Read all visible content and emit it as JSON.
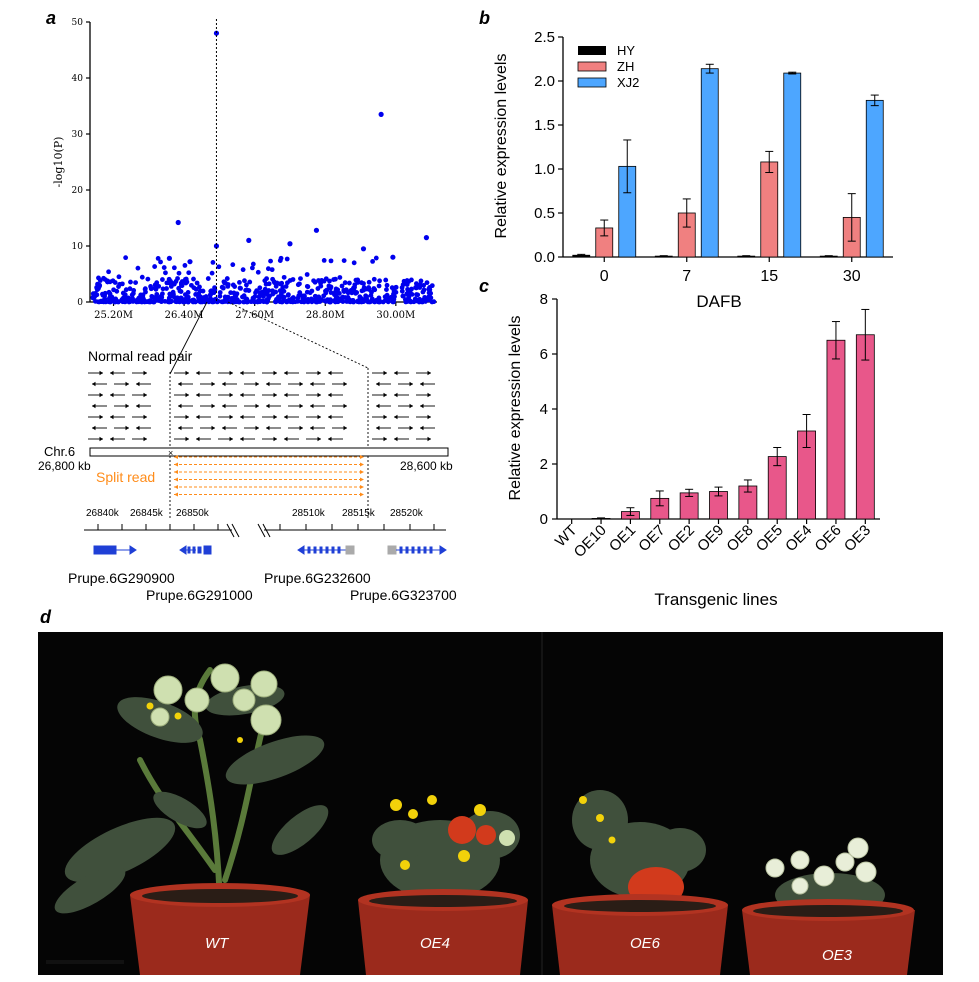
{
  "panels": {
    "a": "a",
    "b": "b",
    "c": "c",
    "d": "d"
  },
  "chart_data": [
    {
      "id": "a",
      "type": "scatter",
      "ylabel": "-log10(P)",
      "xlabel": "",
      "yticks": [
        0,
        10,
        20,
        30,
        40,
        50
      ],
      "xticks": [
        "25.20M",
        "26.40M",
        "27.60M",
        "28.80M",
        "30.00M"
      ],
      "xtick_values": [
        25.2,
        26.4,
        27.6,
        28.8,
        30.0
      ],
      "xlim": [
        24.8,
        30.7
      ],
      "ylim": [
        0,
        50
      ],
      "lead_snp_x": 26.95,
      "points": [
        {
          "x": 26.95,
          "y": 48
        },
        {
          "x": 29.75,
          "y": 33.5
        },
        {
          "x": 26.3,
          "y": 14.2
        },
        {
          "x": 26.95,
          "y": 10
        },
        {
          "x": 30.52,
          "y": 11.5
        },
        {
          "x": 28.65,
          "y": 12.8
        },
        {
          "x": 27.5,
          "y": 11
        },
        {
          "x": 28.2,
          "y": 10.4
        },
        {
          "x": 29.45,
          "y": 9.5
        },
        {
          "x": 26.15,
          "y": 7.8
        },
        {
          "x": 26.5,
          "y": 7.2
        },
        {
          "x": 29.95,
          "y": 8
        }
      ],
      "color": "#0000ee"
    },
    {
      "id": "b",
      "type": "bar",
      "ylabel": "Relative expression levels",
      "xlabel": "DAFB",
      "categories": [
        "0",
        "7",
        "15",
        "30"
      ],
      "yticks": [
        "0.0",
        "0.5",
        "1.0",
        "1.5",
        "2.0",
        "2.5"
      ],
      "ylim": [
        0,
        2.5
      ],
      "series": [
        {
          "name": "HY",
          "color": "#000000",
          "values": [
            0.02,
            0.01,
            0.01,
            0.01
          ],
          "errors": [
            0.01,
            0.005,
            0.005,
            0.005
          ]
        },
        {
          "name": "ZH",
          "color": "#f08080",
          "values": [
            0.33,
            0.5,
            1.08,
            0.45
          ],
          "errors": [
            0.09,
            0.16,
            0.12,
            0.27
          ]
        },
        {
          "name": "XJ2",
          "color": "#4da6ff",
          "values": [
            1.03,
            2.14,
            2.09,
            1.78
          ],
          "errors": [
            0.3,
            0.05,
            0.01,
            0.06
          ]
        }
      ]
    },
    {
      "id": "c",
      "type": "bar",
      "ylabel": "Relative expression levels",
      "xlabel": "Transgenic lines",
      "categories": [
        "WT",
        "OE10",
        "OE1",
        "OE7",
        "OE2",
        "OE9",
        "OE8",
        "OE5",
        "OE4",
        "OE6",
        "OE3"
      ],
      "values": [
        0,
        0.02,
        0.27,
        0.75,
        0.95,
        1.0,
        1.2,
        2.27,
        3.2,
        6.5,
        6.7
      ],
      "errors": [
        0,
        0.02,
        0.14,
        0.27,
        0.13,
        0.16,
        0.22,
        0.33,
        0.6,
        0.68,
        0.92
      ],
      "yticks": [
        "0",
        "2",
        "4",
        "6",
        "8"
      ],
      "ylim": [
        0,
        8
      ],
      "color": "#e8578a"
    }
  ],
  "diagram": {
    "normal_read_pair": "Normal read pair",
    "chr": "Chr.6",
    "left_kb": "26,800 kb",
    "right_kb": "28,600 kb",
    "split_read": "Split read",
    "coords": [
      "26840k",
      "26845k",
      "26850k",
      "28510k",
      "28515k",
      "28520k"
    ],
    "genes": [
      "Prupe.6G290900",
      "Prupe.6G291000",
      "Prupe.6G232600",
      "Prupe.6G323700"
    ],
    "read_color": "#000000",
    "split_color": "#ff8c1a",
    "gene_color": "#1f3fd6"
  },
  "photo": {
    "labels": [
      "WT",
      "OE4",
      "OE6",
      "OE3"
    ],
    "pot_color": "#9b2a1c",
    "leaf_color": "#3d4a3a",
    "green_fruit": "#cfe0b0",
    "red_fruit": "#d23a1c",
    "flower": "#f2d20a"
  }
}
